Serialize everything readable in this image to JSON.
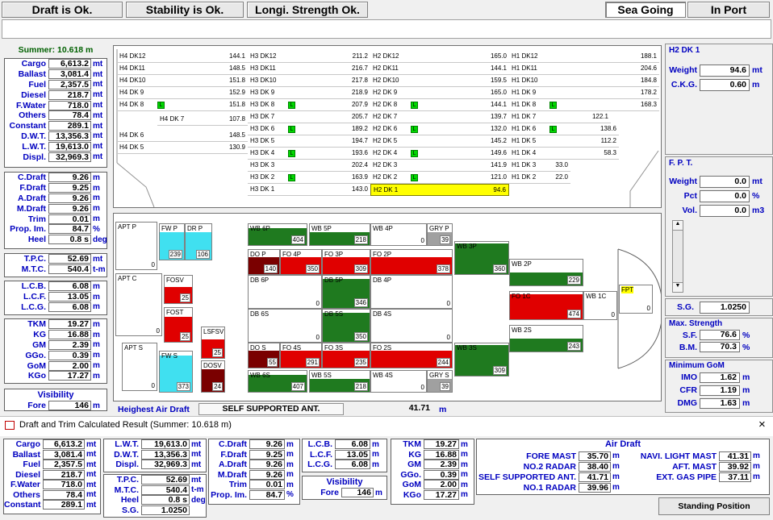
{
  "status": {
    "draft": "Draft is Ok.",
    "stability": "Stability is Ok.",
    "strength": "Longi. Strength Ok.",
    "sea_going": "Sea Going",
    "in_port": "In Port"
  },
  "summer": "Summer:  10.618 m",
  "left": {
    "g1": [
      [
        "Cargo",
        "6,613.2",
        "mt"
      ],
      [
        "Ballast",
        "3,081.4",
        "mt"
      ],
      [
        "Fuel",
        "2,357.5",
        "mt"
      ],
      [
        "Diesel",
        "218.7",
        "mt"
      ],
      [
        "F.Water",
        "718.0",
        "mt"
      ],
      [
        "Others",
        "78.4",
        "mt"
      ],
      [
        "Constant",
        "289.1",
        "mt"
      ],
      [
        "D.W.T.",
        "13,356.3",
        "mt"
      ],
      [
        "L.W.T.",
        "19,613.0",
        "mt"
      ],
      [
        "Displ.",
        "32,969.3",
        "mt"
      ]
    ],
    "g2": [
      [
        "C.Draft",
        "9.26",
        "m"
      ],
      [
        "F.Draft",
        "9.25",
        "m"
      ],
      [
        "A.Draft",
        "9.26",
        "m"
      ],
      [
        "M.Draft",
        "9.26",
        "m"
      ],
      [
        "Trim",
        "0.01",
        "m"
      ],
      [
        "Prop. Im.",
        "84.7",
        "%"
      ],
      [
        "Heel",
        "0.8 s",
        "deg"
      ]
    ],
    "g3": [
      [
        "T.P.C.",
        "52.69",
        "mt"
      ],
      [
        "M.T.C.",
        "540.4",
        "t-m"
      ]
    ],
    "g4": [
      [
        "L.C.B.",
        "6.08",
        "m"
      ],
      [
        "L.C.F.",
        "13.05",
        "m"
      ],
      [
        "L.C.G.",
        "6.08",
        "m"
      ]
    ],
    "g5": [
      [
        "TKM",
        "19.27",
        "m"
      ],
      [
        "KG",
        "16.88",
        "m"
      ],
      [
        "GM",
        "2.39",
        "m"
      ],
      [
        "GGo.",
        "0.39",
        "m"
      ],
      [
        "GoM",
        "2.00",
        "m"
      ],
      [
        "KGo",
        "17.27",
        "m"
      ]
    ],
    "visibility": "Visibility",
    "fore_label": "Fore",
    "fore_value": "146",
    "fore_unit": "m"
  },
  "decks": {
    "c1": [
      [
        "H4 DK12",
        "144.1"
      ],
      [
        "H4 DK11",
        "148.5"
      ],
      [
        "H4 DK10",
        "151.8"
      ],
      [
        "H4 DK 9",
        "152.9"
      ],
      [
        "H4 DK 8",
        "151.8"
      ],
      [
        "H4 DK 7",
        "107.8"
      ],
      [
        "H4 DK 6",
        "148.5"
      ],
      [
        "H4 DK 5",
        "130.9"
      ]
    ],
    "c2": [
      [
        "H3 DK12",
        "211.2"
      ],
      [
        "H3 DK11",
        "216.7"
      ],
      [
        "H3 DK10",
        "217.8"
      ],
      [
        "H3 DK 9",
        "218.9"
      ],
      [
        "H3 DK 8",
        "207.9"
      ],
      [
        "H3 DK 7",
        "205.7"
      ],
      [
        "H3 DK 6",
        "189.2"
      ],
      [
        "H3 DK 5",
        "194.7"
      ],
      [
        "H3 DK 4",
        "193.6"
      ],
      [
        "H3 DK 3",
        "202.4"
      ],
      [
        "H3 DK 2",
        "163.9"
      ],
      [
        "H3 DK 1",
        "143.0"
      ]
    ],
    "c3": [
      [
        "H2 DK12",
        "165.0"
      ],
      [
        "H2 DK11",
        "144.1"
      ],
      [
        "H2 DK10",
        "159.5"
      ],
      [
        "H2 DK 9",
        "165.0"
      ],
      [
        "H2 DK 8",
        "144.1"
      ],
      [
        "H2 DK 7",
        "139.7"
      ],
      [
        "H2 DK 6",
        "132.0"
      ],
      [
        "H2 DK 5",
        "145.2"
      ],
      [
        "H2 DK 4",
        "149.6"
      ],
      [
        "H2 DK 3",
        "141.9"
      ],
      [
        "H2 DK 2",
        "121.0"
      ],
      [
        "H2 DK 1",
        "94.6"
      ]
    ],
    "c4": [
      [
        "H1 DK12",
        "188.1"
      ],
      [
        "H1 DK11",
        "204.6"
      ],
      [
        "H1 DK10",
        "184.8"
      ],
      [
        "H1 DK 9",
        "178.2"
      ],
      [
        "H1 DK 8",
        "168.3"
      ],
      [
        "H1 DK 7",
        "122.1"
      ],
      [
        "H1 DK 6",
        "138.6"
      ],
      [
        "H1 DK 5",
        "112.2"
      ],
      [
        "H1 DK 4",
        "58.3"
      ],
      [
        "H1 DK 3",
        "33.0"
      ],
      [
        "H1 DK 2",
        "22.0"
      ]
    ],
    "lm": "L"
  },
  "tanks": {
    "apt_p": "APT P",
    "apt_p_v": "0",
    "fw_p": "FW P",
    "fw_p_v": "239",
    "dr_p": "DR P",
    "dr_p_v": "106",
    "apt_c": "APT C",
    "apt_c_v": "0",
    "fosv": "FOSV",
    "fosv_v": "25",
    "fost": "FOST",
    "fost_v": "25",
    "apt_s": "APT S",
    "apt_s_v": "0",
    "fw_s": "FW S",
    "fw_s_v": "373",
    "lsfsv": "LSFSV",
    "lsfsv_v": "25",
    "dosv": "DOSV",
    "dosv_v": "24",
    "wb6p": "WB 6P",
    "wb6p_v": "404",
    "wb5p": "WB 5P",
    "wb5p_v": "218",
    "wb4p": "WB 4P",
    "wb4p_v": "0",
    "gryp": "GRY P",
    "gryp_v": "39",
    "wb3p": "WB 3P",
    "wb3p_v": "360",
    "dop": "DO P",
    "dop_v": "140",
    "fo4p": "FO 4P",
    "fo4p_v": "350",
    "fo3p": "FO 3P",
    "fo3p_v": "309",
    "fo2p": "FO 2P",
    "fo2p_v": "378",
    "db6p": "DB 6P",
    "db6p_v": "0",
    "db5p": "DB 5P",
    "db5p_v": "346",
    "db4p": "DB 4P",
    "db4p_v": "0",
    "wb2p": "WB 2P",
    "wb2p_v": "229",
    "fo1c": "FO 1C",
    "fo1c_v": "474",
    "wb1c": "WB 1C",
    "wb1c_v": "0",
    "fpt": "FPT",
    "fpt_v": "0",
    "wb2s": "WB 2S",
    "wb2s_v": "243",
    "db6s": "DB 6S",
    "db6s_v": "0",
    "db5s": "DB 5S",
    "db5s_v": "350",
    "db4s": "DB 4S",
    "db4s_v": "0",
    "dos": "DO S",
    "dos_v": "55",
    "fo4s": "FO 4S",
    "fo4s_v": "291",
    "fo3s": "FO 3S",
    "fo3s_v": "235",
    "fo2s": "FO 2S",
    "fo2s_v": "244",
    "wb3s": "WB 3S",
    "wb3s_v": "309",
    "wb6s": "WB 6S",
    "wb6s_v": "407",
    "wb5s": "WB 5S",
    "wb5s_v": "218",
    "wb4s": "WB 4S",
    "wb4s_v": "0",
    "grys": "GRY S",
    "grys_v": "39"
  },
  "air": {
    "label": "Heighest Air Draft",
    "item": "SELF SUPPORTED ANT.",
    "value": "41.71",
    "unit": "m"
  },
  "right": {
    "h2dk1": "H2 DK 1",
    "weight_l": "Weight",
    "weight_v": "94.6",
    "weight_u": "mt",
    "ckg_l": "C.K.G.",
    "ckg_v": "0.60",
    "ckg_u": "m",
    "fpt": "F. P. T.",
    "fw_l": "Weight",
    "fw_v": "0.0",
    "fw_u": "mt",
    "pct_l": "Pct",
    "pct_v": "0.0",
    "pct_u": "%",
    "vol_l": "Vol.",
    "vol_v": "0.0",
    "vol_u": "m3",
    "sg_l": "S.G.",
    "sg_v": "1.0250",
    "max": "Max. Strength",
    "sf_l": "S.F.",
    "sf_v": "76.6",
    "sf_u": "%",
    "bm_l": "B.M.",
    "bm_v": "70.3",
    "bm_u": "%",
    "min": "Minimum GoM",
    "imo_l": "IMO",
    "imo_v": "1.62",
    "imo_u": "m",
    "cfr_l": "CFR",
    "cfr_v": "1.19",
    "cfr_u": "m",
    "dmg_l": "DMG",
    "dmg_v": "1.63",
    "dmg_u": "m"
  },
  "bottom": {
    "title": "Draft and Trim Calculated Result (Summer:  10.618 m)",
    "close": "×",
    "b1": [
      [
        "Cargo",
        "6,613.2",
        "mt"
      ],
      [
        "Ballast",
        "3,081.4",
        "mt"
      ],
      [
        "Fuel",
        "2,357.5",
        "mt"
      ],
      [
        "Diesel",
        "218.7",
        "mt"
      ],
      [
        "F.Water",
        "718.0",
        "mt"
      ],
      [
        "Others",
        "78.4",
        "mt"
      ],
      [
        "Constant",
        "289.1",
        "mt"
      ]
    ],
    "b2a": [
      [
        "L.W.T.",
        "19,613.0",
        "mt"
      ],
      [
        "D.W.T.",
        "13,356.3",
        "mt"
      ],
      [
        "Displ.",
        "32,969.3",
        "mt"
      ]
    ],
    "b2b": [
      [
        "T.P.C.",
        "52.69",
        "mt"
      ],
      [
        "M.T.C.",
        "540.4",
        "t-m"
      ],
      [
        "Heel",
        "0.8 s",
        "deg"
      ],
      [
        "S.G.",
        "1.0250",
        ""
      ]
    ],
    "b3": [
      [
        "C.Draft",
        "9.26",
        "m"
      ],
      [
        "F.Draft",
        "9.25",
        "m"
      ],
      [
        "A.Draft",
        "9.26",
        "m"
      ],
      [
        "M.Draft",
        "9.26",
        "m"
      ],
      [
        "Trim",
        "0.01",
        "m"
      ],
      [
        "Prop. Im.",
        "84.7",
        "%"
      ]
    ],
    "b4": [
      [
        "L.C.B.",
        "6.08",
        "m"
      ],
      [
        "L.C.F.",
        "13.05",
        "m"
      ],
      [
        "L.C.G.",
        "6.08",
        "m"
      ]
    ],
    "vis": "Visibility",
    "vfore_l": "Fore",
    "vfore_v": "146",
    "vfore_u": "m",
    "b5": [
      [
        "TKM",
        "19.27",
        "m"
      ],
      [
        "KG",
        "16.88",
        "m"
      ],
      [
        "GM",
        "2.39",
        "m"
      ],
      [
        "GGo.",
        "0.39",
        "m"
      ],
      [
        "GoM",
        "2.00",
        "m"
      ],
      [
        "KGo",
        "17.27",
        "m"
      ]
    ],
    "air_title": "Air Draft",
    "air_l": [
      [
        "FORE MAST",
        "35.70",
        "m"
      ],
      [
        "NO.2 RADAR",
        "38.40",
        "m"
      ],
      [
        "SELF SUPPORTED ANT.",
        "41.71",
        "m"
      ],
      [
        "NO.1 RADAR",
        "39.96",
        "m"
      ]
    ],
    "air_r": [
      [
        "NAVI. LIGHT MAST",
        "41.31",
        "m"
      ],
      [
        "AFT. MAST",
        "39.92",
        "m"
      ],
      [
        "EXT. GAS PIPE",
        "37.11",
        "m"
      ]
    ],
    "standing": "Standing Position"
  },
  "colors": {
    "green": "#1f7a1f",
    "red": "#e00000",
    "dark_red": "#7a0000",
    "cyan": "#40e0f0",
    "gray": "#a0a0a0",
    "yellow": "#ffff00",
    "label_blue": "#0000c0"
  }
}
